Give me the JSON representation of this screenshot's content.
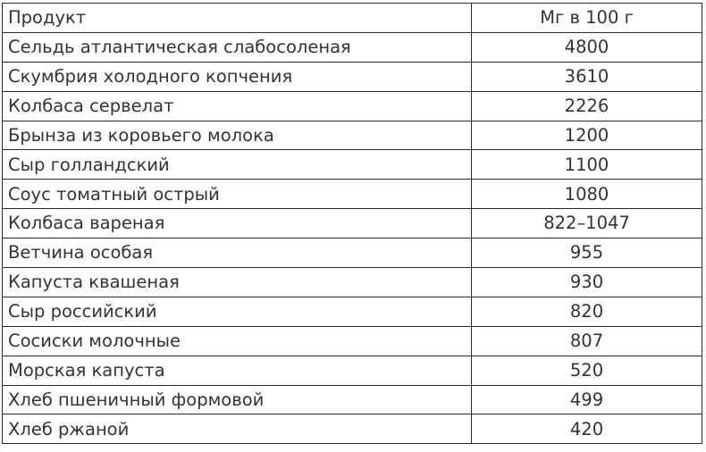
{
  "table": {
    "headers": [
      "Продукт",
      "Мг в 100 г"
    ],
    "rows": [
      [
        "Сельдь атлантическая слабосоленая",
        "4800"
      ],
      [
        "Скумбрия холодного копчения",
        "3610"
      ],
      [
        "Колбаса сервелат",
        "2226"
      ],
      [
        "Брынза из коровьего молока",
        "1200"
      ],
      [
        "Сыр голландский",
        "1100"
      ],
      [
        "Соус томатный острый",
        "1080"
      ],
      [
        "Колбаса вареная",
        "822–1047"
      ],
      [
        "Ветчина особая",
        "955"
      ],
      [
        "Капуста квашеная",
        "930"
      ],
      [
        "Сыр российский",
        "820"
      ],
      [
        "Сосиски молочные",
        "807"
      ],
      [
        "Морская капуста",
        "520"
      ],
      [
        "Хлеб пшеничный формовой",
        "499"
      ],
      [
        "Хлеб ржаной",
        "420"
      ]
    ]
  }
}
